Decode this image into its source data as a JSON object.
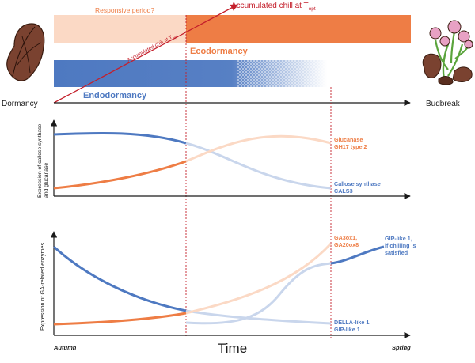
{
  "colors": {
    "orange": "#ee7d45",
    "orange_light": "#fbd9c5",
    "blue": "#4e79c1",
    "blue_light": "#c9d6ec",
    "red": "#c41f2b",
    "axis": "#1a1a1a",
    "leaf": "#7a4230",
    "flower": "#e8a1c4",
    "stem": "#5aa43c"
  },
  "timeline": {
    "left_label": "Dormancy",
    "right_label": "Budbreak",
    "responsive_label": "Responsive period?",
    "accum_top_label": "Accumulated chill at T",
    "accum_top_sub": "opt",
    "accum_diag_label": "Accumulated chill at T",
    "accum_diag_sub": "opt",
    "ecodormancy_label": "Ecodormancy",
    "endodormancy_label": "Endodormancy"
  },
  "icons": {
    "left": "dormant-bud-icon",
    "right": "flowering-bud-icon"
  },
  "panel1": {
    "ylabel_line1": "Expression of callose synthase",
    "ylabel_line2": "and glucanase",
    "orange_label_1": "Glucanase",
    "orange_label_2": "GH17 type 2",
    "blue_label_1": "Callose synthase",
    "blue_label_2": "CALS3"
  },
  "panel2": {
    "ylabel": "Expression of GA-related enzymes",
    "orange_label_1": "GA3ox1,",
    "orange_label_2": "GA20ox8",
    "gip_label_1": "GIP-like 1,",
    "gip_label_2": "if chilling is",
    "gip_label_3": "satisfied",
    "della_label_1": "DELLA-like 1,",
    "della_label_2": "GIP-like 1"
  },
  "x_axis": {
    "start": "Autumn",
    "title": "Time",
    "end": "Spring"
  }
}
